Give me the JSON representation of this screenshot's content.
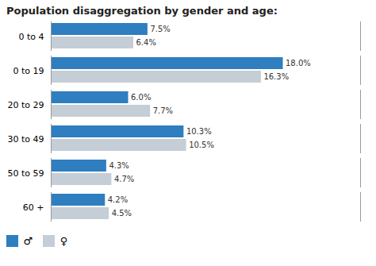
{
  "chart_data": {
    "type": "bar",
    "orientation": "horizontal",
    "title": "Population disaggregation by gender and age:",
    "categories": [
      "60 +",
      "50 to 59",
      "30 to 49",
      "20 to 29",
      "0 to 19",
      "0 to 4"
    ],
    "series": [
      {
        "name": "♂",
        "color": "#2e7ec0",
        "values": [
          4.2,
          4.3,
          10.3,
          6.0,
          18.0,
          7.5
        ],
        "value_labels": [
          "4.2%",
          "4.3%",
          "10.3%",
          "6.0%",
          "18.0%",
          "7.5%"
        ]
      },
      {
        "name": "♀",
        "color": "#c5cdd6",
        "values": [
          4.5,
          4.7,
          10.5,
          7.7,
          16.3,
          6.4
        ],
        "value_labels": [
          "4.5%",
          "4.7%",
          "10.5%",
          "7.7%",
          "16.3%",
          "6.4%"
        ]
      }
    ],
    "xlim": [
      0,
      24
    ],
    "tick_labels": "y",
    "grid": false,
    "data_labels": true,
    "legend": "lower left"
  }
}
